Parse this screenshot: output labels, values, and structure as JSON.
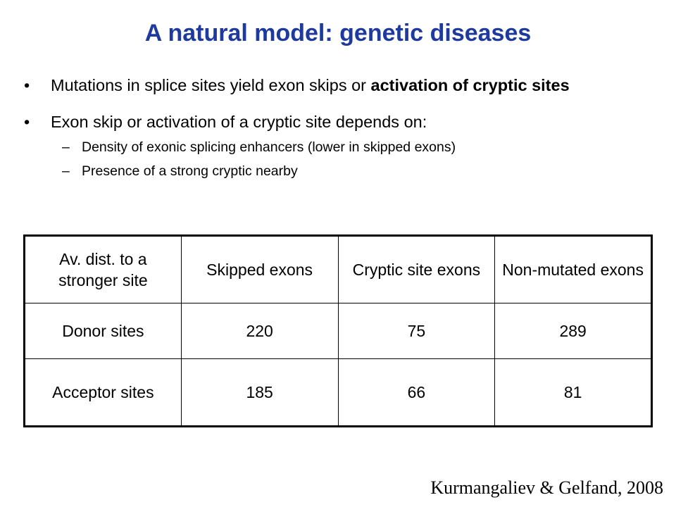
{
  "title": "A natural model: genetic diseases",
  "bullets": {
    "b1_text": "Mutations in splice sites yield exon skips or ",
    "b1_bold": "activation of cryptic sites",
    "b2_text": "Exon skip or activation of a cryptic site depends on:",
    "sub1": "Density of exonic splicing enhancers (lower in skipped exons)",
    "sub2": "Presence of a strong cryptic nearby"
  },
  "table": {
    "headers": [
      "Av. dist. to a stronger site",
      "Skipped exons",
      "Cryptic site exons",
      "Non-mutated exons"
    ],
    "rows": [
      [
        "Donor sites",
        "220",
        "75",
        "289"
      ],
      [
        "Acceptor sites",
        "185",
        "66",
        "81"
      ]
    ]
  },
  "citation": "Kurmangaliev  & Gelfand, 2008"
}
